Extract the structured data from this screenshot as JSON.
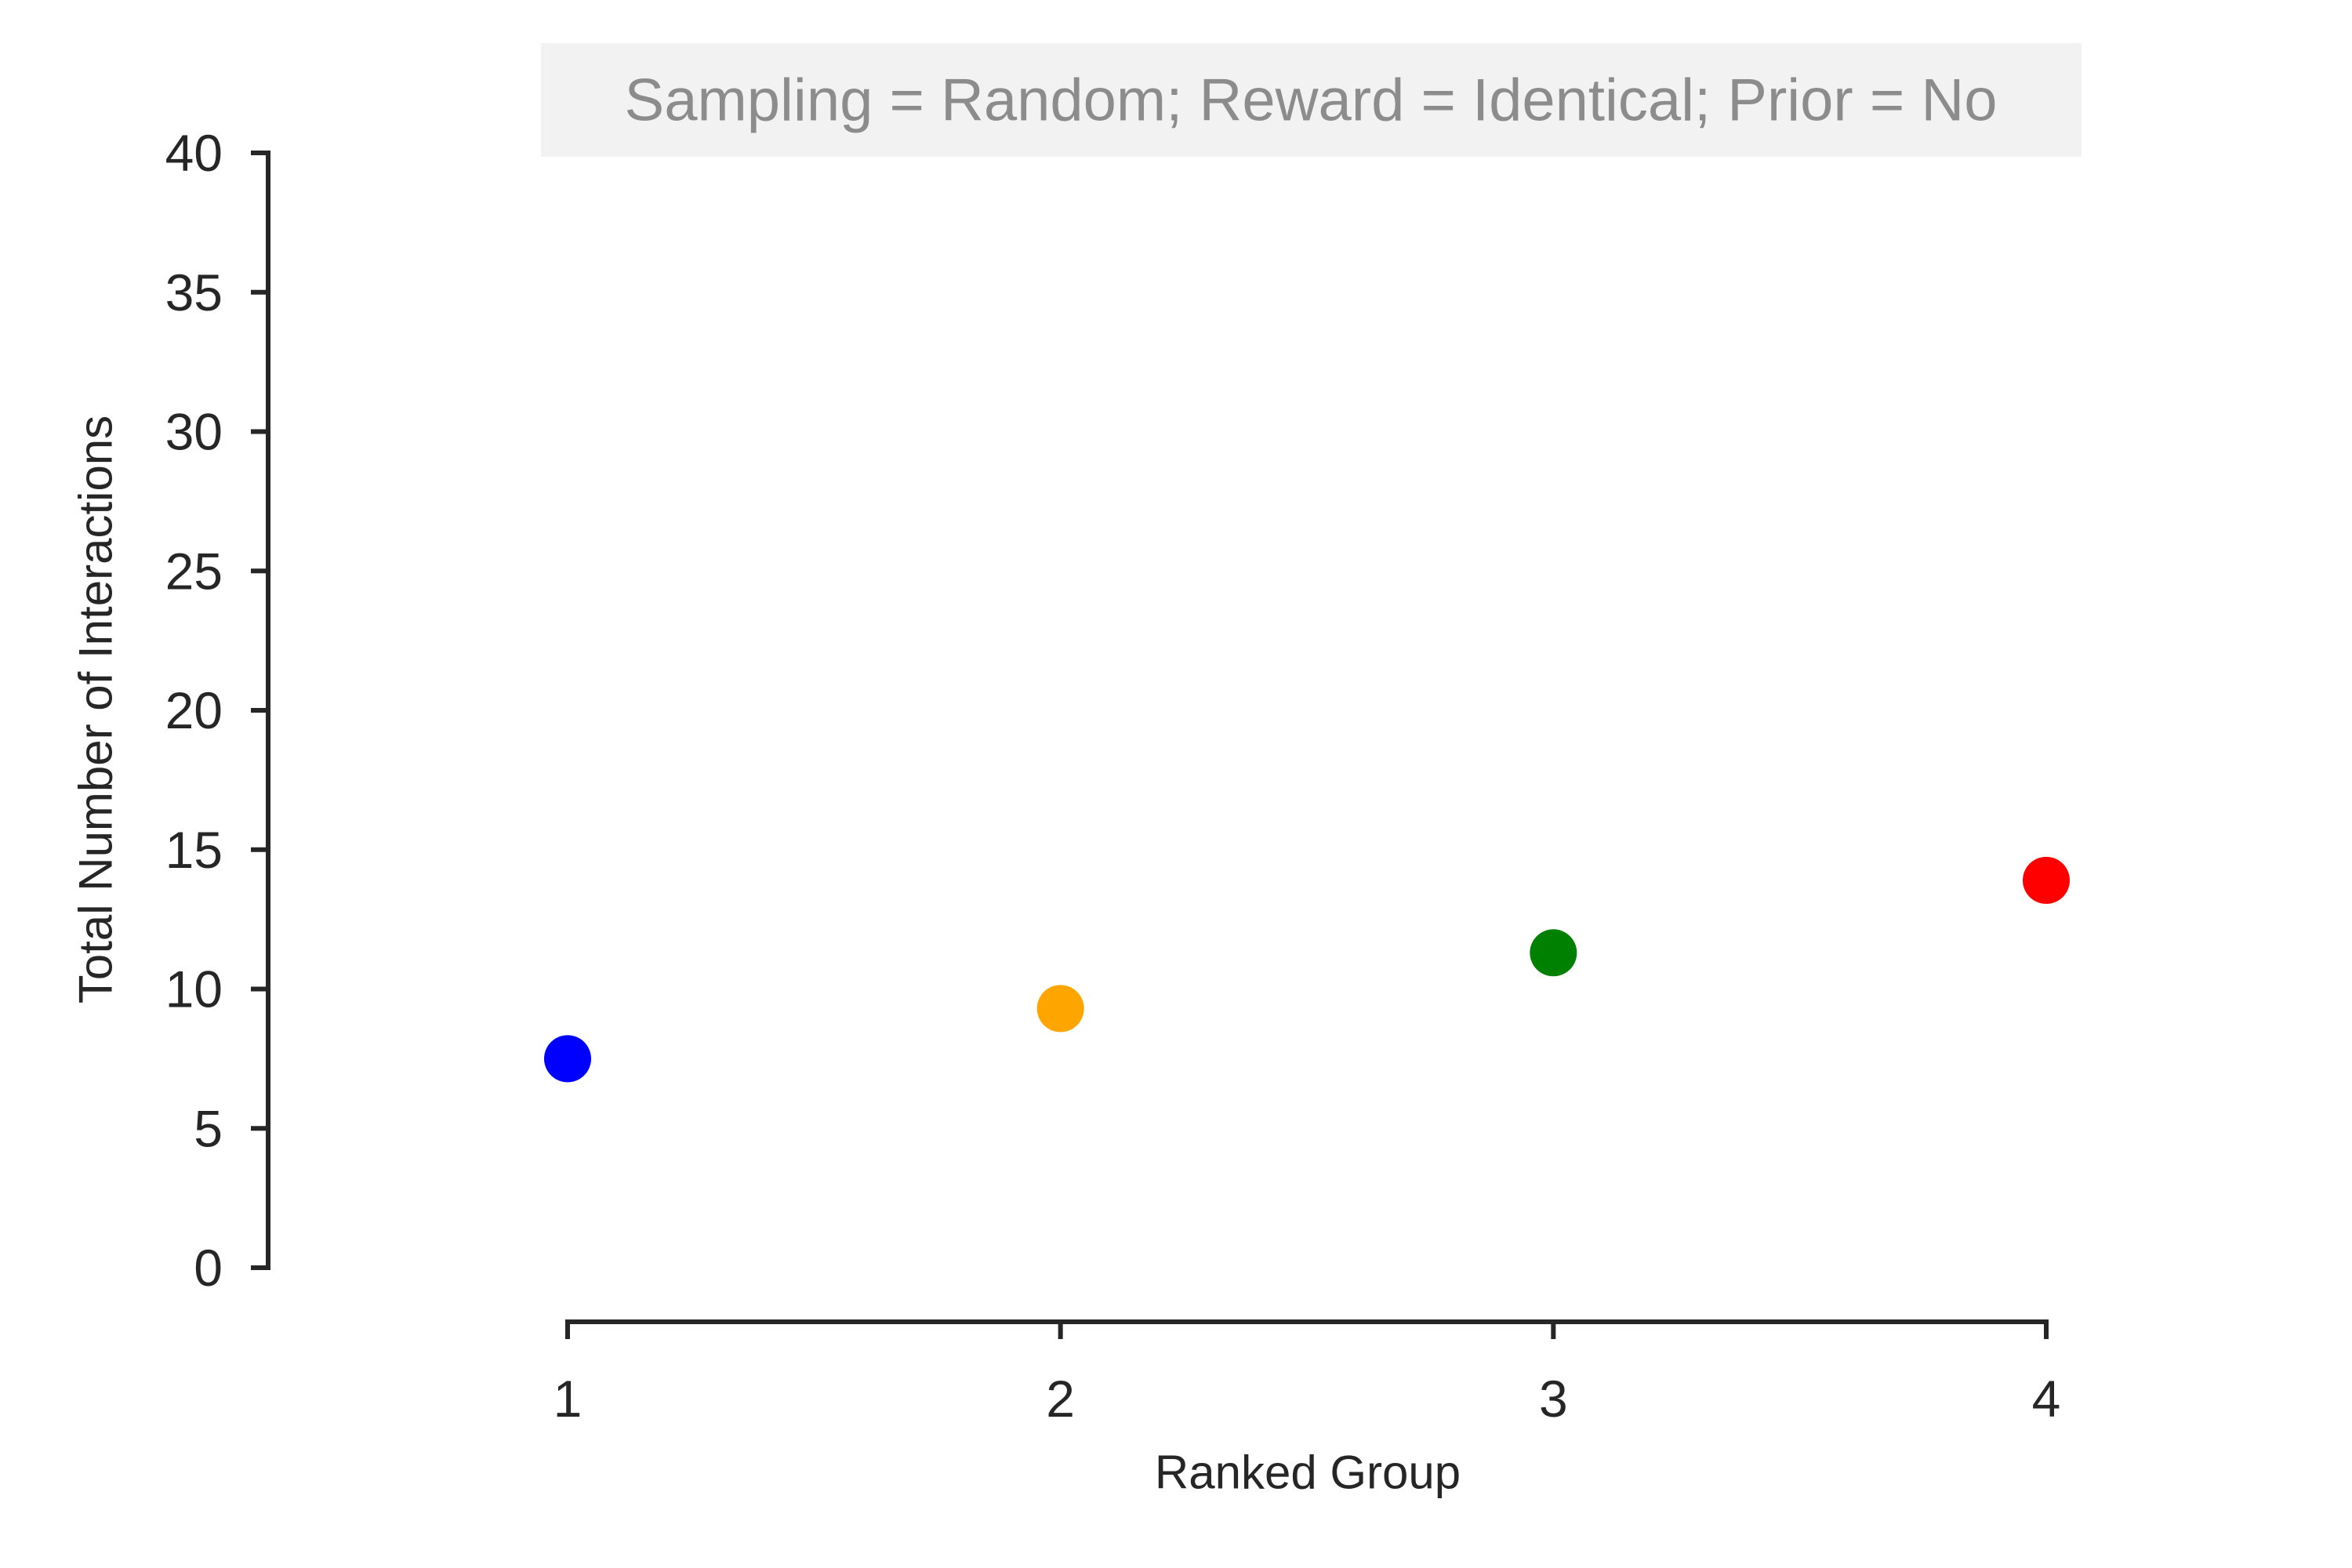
{
  "chart_data": {
    "type": "scatter",
    "title": "Sampling = Random; Reward = Identical; Prior = No",
    "xlabel": "Ranked Group",
    "ylabel": "Total Number of Interactions",
    "x": [
      1,
      2,
      3,
      4
    ],
    "y": [
      7.5,
      9.3,
      11.3,
      13.9
    ],
    "point_colors": [
      "#0000ff",
      "#ffa500",
      "#008000",
      "#ff0000"
    ],
    "xticks": [
      "1",
      "2",
      "3",
      "4"
    ],
    "yticks": [
      "0",
      "5",
      "10",
      "15",
      "20",
      "25",
      "30",
      "35",
      "40"
    ],
    "xlim": [
      1,
      4
    ],
    "ylim": [
      0,
      40
    ],
    "grid": false,
    "legend": "none",
    "colors": {
      "axis": "#262626",
      "title_background": "#f2f2f2",
      "title_text": "#8c8c8c"
    }
  }
}
